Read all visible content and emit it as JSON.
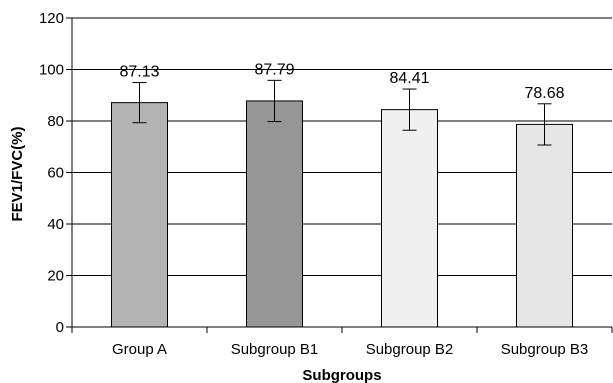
{
  "chart_data": {
    "type": "bar",
    "categories": [
      "Group A",
      "Subgroup B1",
      "Subgroup B2",
      "Subgroup B3"
    ],
    "values": [
      87.13,
      87.79,
      84.41,
      78.68
    ],
    "value_labels": [
      "87.13",
      "87.79",
      "84.41",
      "78.68"
    ],
    "error": [
      7.8,
      8.0,
      8.0,
      8.0
    ],
    "bar_colors": [
      "#b4b4b4",
      "#969696",
      "#f0f0f0",
      "#e6e6e6"
    ],
    "xlabel": "Subgroups",
    "ylabel": "FEV1/FVC(%)",
    "ylim": [
      0,
      120
    ],
    "yticks": [
      "0",
      "20",
      "40",
      "60",
      "80",
      "100",
      "120"
    ],
    "grid": true
  }
}
